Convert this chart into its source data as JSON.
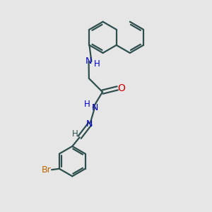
{
  "background_color": "#e6e6e6",
  "bond_color": "#2f4f4f",
  "N_color": "#0000cc",
  "O_color": "#cc0000",
  "Br_color": "#bb6600",
  "line_width": 1.6,
  "figsize": [
    3.0,
    3.0
  ],
  "dpi": 100,
  "xlim": [
    0,
    10
  ],
  "ylim": [
    0,
    10
  ]
}
